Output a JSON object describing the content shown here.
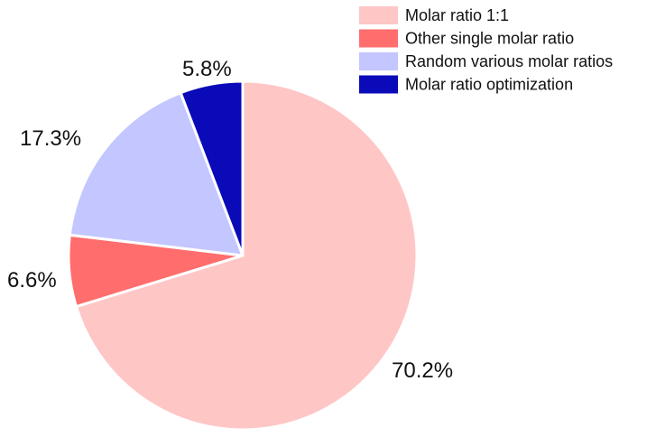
{
  "chart_data": {
    "type": "pie",
    "slices": [
      {
        "label": "Molar ratio 1:1",
        "value": 70.2,
        "display": "70.2%",
        "color": "#ffc6c6"
      },
      {
        "label": "Other single molar ratio",
        "value": 6.6,
        "display": "6.6%",
        "color": "#ff6d6d"
      },
      {
        "label": "Random various molar ratios",
        "value": 17.3,
        "display": "17.3%",
        "color": "#c3c6ff"
      },
      {
        "label": "Molar ratio optimization",
        "value": 5.8,
        "display": "5.8%",
        "color": "#0a0ab8"
      }
    ],
    "start": "12 o'clock",
    "direction": "clockwise",
    "legend_position": "top-right"
  }
}
